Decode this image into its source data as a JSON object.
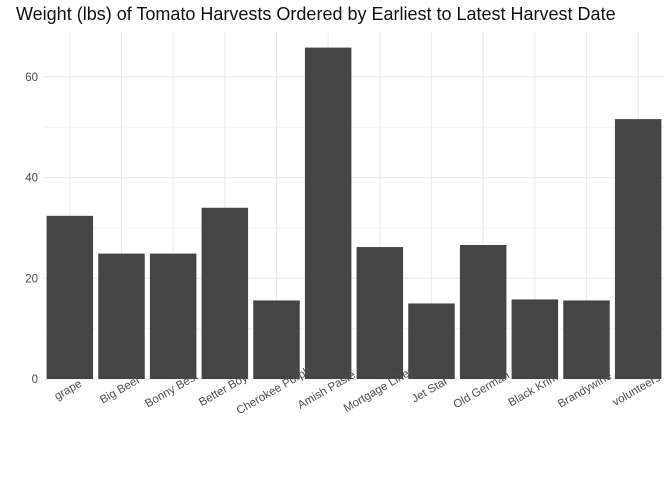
{
  "chart_data": {
    "type": "bar",
    "title": "Weight (lbs) of Tomato Harvests Ordered by Earliest to Latest Harvest Date",
    "xlabel": "",
    "ylabel": "",
    "categories": [
      "grape",
      "Big Beef",
      "Bonny Best",
      "Better Boy",
      "Cherokee Purple",
      "Amish Paste",
      "Mortgage Lifter",
      "Jet Star",
      "Old German",
      "Black Krim",
      "Brandywine",
      "volunteers"
    ],
    "values": [
      32.4,
      24.9,
      24.9,
      34.0,
      15.6,
      65.8,
      26.2,
      15.0,
      26.6,
      15.8,
      15.6,
      51.6
    ],
    "ylim": [
      0,
      68.9
    ],
    "yticks": [
      0,
      20,
      40,
      60
    ],
    "y_tick_labels": [
      "0",
      "20",
      "40",
      "60"
    ],
    "grid": true,
    "bar_color": "#454545",
    "grid_color": "#ebebeb"
  }
}
